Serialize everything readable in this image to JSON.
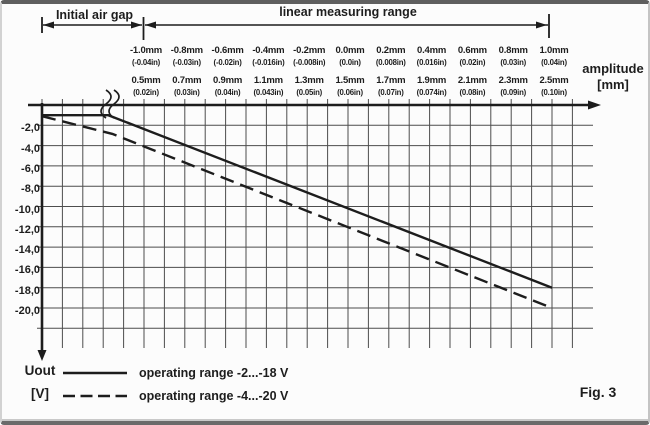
{
  "figure": {
    "fig_label": "Fig. 3",
    "uout_label": "Uout",
    "uout_unit": "[V]",
    "amplitude_label": "amplitude",
    "amplitude_unit": "[mm]",
    "annotations": {
      "initial_air_gap": "Initial air gap",
      "linear_measuring_range": "linear measuring range"
    }
  },
  "legend": [
    {
      "style": "solid",
      "label": "operating range -2...-18 V"
    },
    {
      "style": "dashed",
      "label": "operating range -4...-20 V"
    }
  ],
  "colors": {
    "ink": "#1d1d1d",
    "grid": "#4d4d4d"
  },
  "chart_data": {
    "type": "line",
    "title": "",
    "xlabel": "amplitude [mm]",
    "ylabel": "Uout [V]",
    "grid": true,
    "legend_position": "bottom-left",
    "xlim_mm": [
      -1.5,
      1.2
    ],
    "ylim_v": [
      -22,
      0
    ],
    "axis_break_mm": -1.17,
    "x_tick_values_mm": [
      -1.0,
      -0.8,
      -0.6,
      -0.4,
      -0.2,
      0.0,
      0.2,
      0.4,
      0.6,
      0.8,
      1.0
    ],
    "x_ticks_mm": [
      "-1.0mm",
      "-0.8mm",
      "-0.6mm",
      "-0.4mm",
      "-0.2mm",
      "0.0mm",
      "0.2mm",
      "0.4mm",
      "0.6mm",
      "0.8mm",
      "1.0mm"
    ],
    "x_ticks_in": [
      "(-0.04in)",
      "(-0.03in)",
      "(-0.02in)",
      "(-0.016in)",
      "(-0.008in)",
      "(0.0in)",
      "(0.008in)",
      "(0.016in)",
      "(0.02in)",
      "(0.03in)",
      "(0.04in)"
    ],
    "x_ticks_mm_row2": [
      "0.5mm",
      "0.7mm",
      "0.9mm",
      "1.1mm",
      "1.3mm",
      "1.5mm",
      "1.7mm",
      "1.9mm",
      "2.1mm",
      "2.3mm",
      "2.5mm"
    ],
    "x_ticks_in_row2": [
      "(0.02in)",
      "(0.03in)",
      "(0.04in)",
      "(0.043in)",
      "(0.05in)",
      "(0.06in)",
      "(0.07in)",
      "(0.074in)",
      "(0.08in)",
      "(0.09in)",
      "(0.10in)"
    ],
    "y_tick_values": [
      -2,
      -4,
      -6,
      -8,
      -10,
      -12,
      -14,
      -16,
      -18,
      -20
    ],
    "y_ticks": [
      "-2,0",
      "-4,0",
      "-6,0",
      "-8,0",
      "-10,0",
      "-12,0",
      "-14,0",
      "-16,0",
      "-18,0",
      "-20,0"
    ],
    "series": [
      {
        "name": "operating range -2...-18 V",
        "style": "solid",
        "points_mm_v": [
          [
            -1.5,
            -1.0
          ],
          [
            -1.175,
            -1.0
          ],
          [
            1.0,
            -18.0
          ]
        ]
      },
      {
        "name": "operating range -4...-20 V",
        "style": "dashed",
        "points_mm_v": [
          [
            -1.5,
            -1.1
          ],
          [
            -1.155,
            -2.85
          ],
          [
            1.0,
            -20.0
          ]
        ]
      }
    ]
  }
}
